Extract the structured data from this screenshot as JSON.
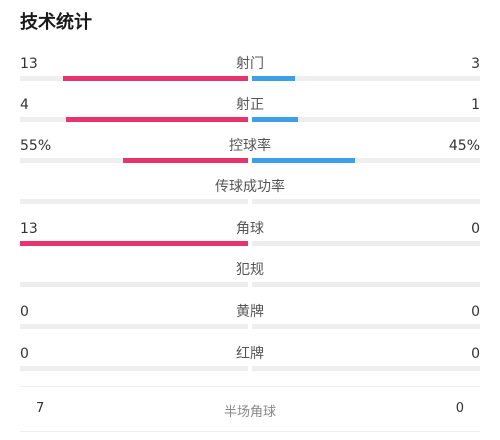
{
  "title": "技术统计",
  "colors": {
    "home": "#e8336d",
    "away": "#3d9fe8",
    "track": "#eeeeee"
  },
  "stats": [
    {
      "label": "射门",
      "home": "13",
      "away": "3",
      "home_share": 0.81,
      "away_share": 0.19
    },
    {
      "label": "射正",
      "home": "4",
      "away": "1",
      "home_share": 0.8,
      "away_share": 0.2
    },
    {
      "label": "控球率",
      "home": "55%",
      "away": "45%",
      "home_share": 0.55,
      "away_share": 0.45
    },
    {
      "label": "传球成功率",
      "home": "",
      "away": "",
      "home_share": 0,
      "away_share": 0
    },
    {
      "label": "角球",
      "home": "13",
      "away": "0",
      "home_share": 1.0,
      "away_share": 0
    },
    {
      "label": "犯规",
      "home": "",
      "away": "",
      "home_share": 0,
      "away_share": 0
    },
    {
      "label": "黄牌",
      "home": "0",
      "away": "0",
      "home_share": 0,
      "away_share": 0
    },
    {
      "label": "红牌",
      "home": "0",
      "away": "0",
      "home_share": 0,
      "away_share": 0
    }
  ],
  "half_corners": {
    "label": "半场角球",
    "home": "7",
    "away": "0"
  }
}
